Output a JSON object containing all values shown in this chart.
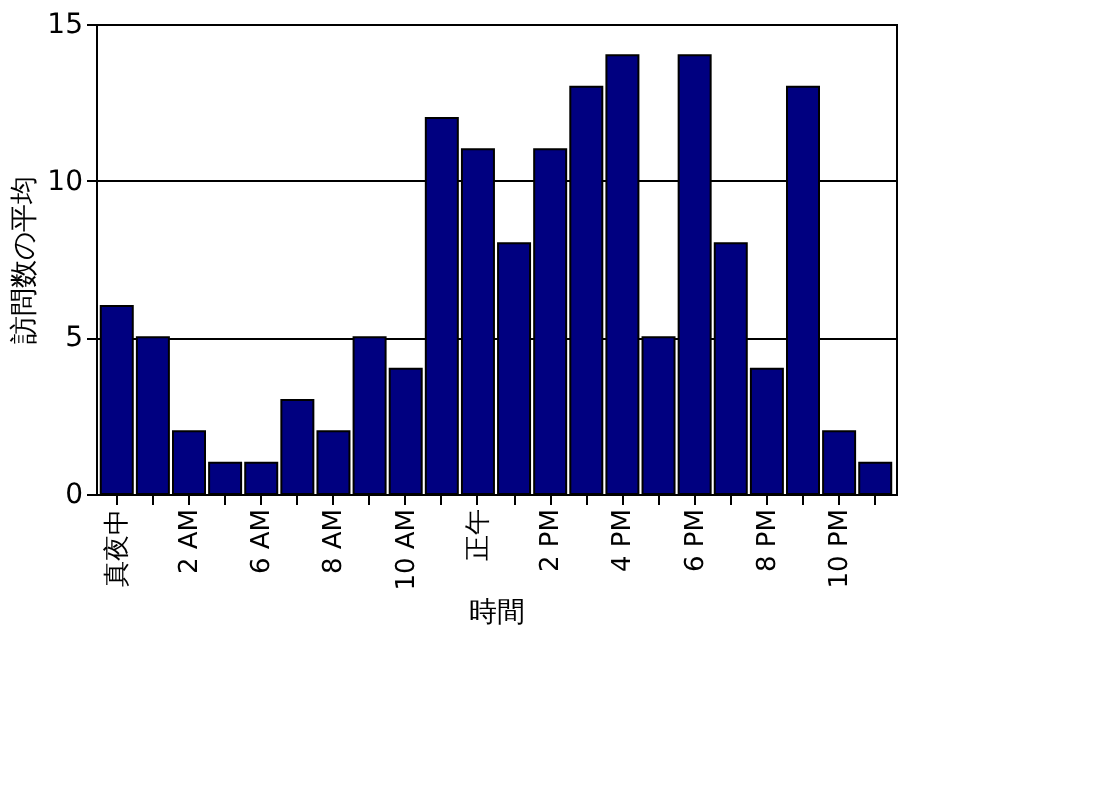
{
  "chart_data": {
    "type": "bar",
    "xlabel": "時間",
    "ylabel": "訪問数の平均",
    "categories": [
      "真夜中",
      null,
      "2 AM",
      null,
      "6 AM",
      null,
      "8 AM",
      null,
      "10 AM",
      null,
      "正午",
      null,
      "2 PM",
      null,
      "4 PM",
      null,
      "6 PM",
      null,
      "8 PM",
      null,
      "10 PM",
      null
    ],
    "values": [
      6,
      5,
      2,
      1,
      1,
      3,
      2,
      5,
      4,
      12,
      11,
      8,
      11,
      13,
      14,
      5,
      14,
      8,
      4,
      13,
      2,
      1
    ],
    "color": "#000080",
    "ylim": [
      0,
      15
    ],
    "yticks": [
      0,
      5,
      10,
      15
    ],
    "grid": "y"
  }
}
